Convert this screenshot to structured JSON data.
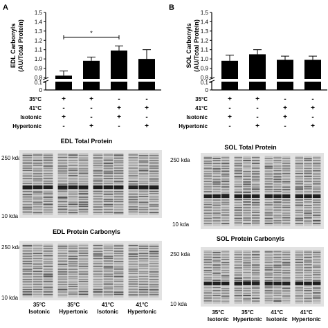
{
  "panels": {
    "a_letter": "A",
    "b_letter": "B"
  },
  "conditions": {
    "rows": [
      {
        "label": "35°C",
        "marks": [
          "+",
          "+",
          "-",
          "-"
        ]
      },
      {
        "label": "41°C",
        "marks": [
          "-",
          "-",
          "+",
          "+"
        ]
      },
      {
        "label": "Isotonic",
        "marks": [
          "+",
          "-",
          "+",
          "-"
        ]
      },
      {
        "label": "Hypertonic",
        "marks": [
          "-",
          "+",
          "-",
          "+"
        ]
      }
    ]
  },
  "chart_data": [
    {
      "type": "bar",
      "panel": "A",
      "ylabel_line1": "EDL Carbonyls",
      "ylabel_line2": "(AU/Total Protein)",
      "categories": [
        "35°C Isotonic",
        "35°C Hypertonic",
        "41°C Isotonic",
        "41°C Hypertonic"
      ],
      "values": [
        0.82,
        0.98,
        1.09,
        1.0
      ],
      "errors": [
        0.05,
        0.04,
        0.05,
        0.1
      ],
      "ylim": [
        0.8,
        1.5
      ],
      "yticks": [
        "0.8",
        "0.9",
        "1.0",
        "1.1",
        "1.2",
        "1.3",
        "1.4",
        "1.5"
      ],
      "low_ticks": [
        "0",
        "0.1"
      ],
      "axis_break": true,
      "bar_color": "#000000",
      "significance": {
        "from": 0,
        "to": 2,
        "label": "*"
      }
    },
    {
      "type": "bar",
      "panel": "B",
      "ylabel_line1": "SOL Carbonyls",
      "ylabel_line2": "(AU/Total Protein)",
      "categories": [
        "35°C Isotonic",
        "35°C Hypertonic",
        "41°C Isotonic",
        "41°C Hypertonic"
      ],
      "values": [
        0.98,
        1.05,
        0.99,
        0.99
      ],
      "errors": [
        0.06,
        0.05,
        0.04,
        0.04
      ],
      "ylim": [
        0.8,
        1.5
      ],
      "yticks": [
        "0.8",
        "0.9",
        "1.0",
        "1.1",
        "1.2",
        "1.3",
        "1.4",
        "1.5"
      ],
      "low_ticks": [
        "0",
        "0.1"
      ],
      "axis_break": true,
      "bar_color": "#000000"
    }
  ],
  "blots": [
    {
      "title": "EDL Total Protein",
      "marker_high": "250 kda",
      "marker_low": "10 kda"
    },
    {
      "title": "SOL Total Protein",
      "marker_high": "250 kda",
      "marker_low": "10 kda"
    },
    {
      "title": "EDL Protein Carbonyls",
      "marker_high": "250 kda",
      "marker_low": "10 kda"
    },
    {
      "title": "SOL Protein Carbonyls",
      "marker_high": "250 kda",
      "marker_low": "10 kda"
    }
  ],
  "lane_labels": [
    {
      "temp": "35°C",
      "medium": "Isotonic"
    },
    {
      "temp": "35°C",
      "medium": "Hypertonic"
    },
    {
      "temp": "41°C",
      "medium": "Isotonic"
    },
    {
      "temp": "41°C",
      "medium": "Hypertonic"
    }
  ],
  "colors": {
    "bar": "#000000",
    "blot_bg": "#e2e2e2",
    "band": "#3a3a3a",
    "band_dark": "#111111"
  }
}
